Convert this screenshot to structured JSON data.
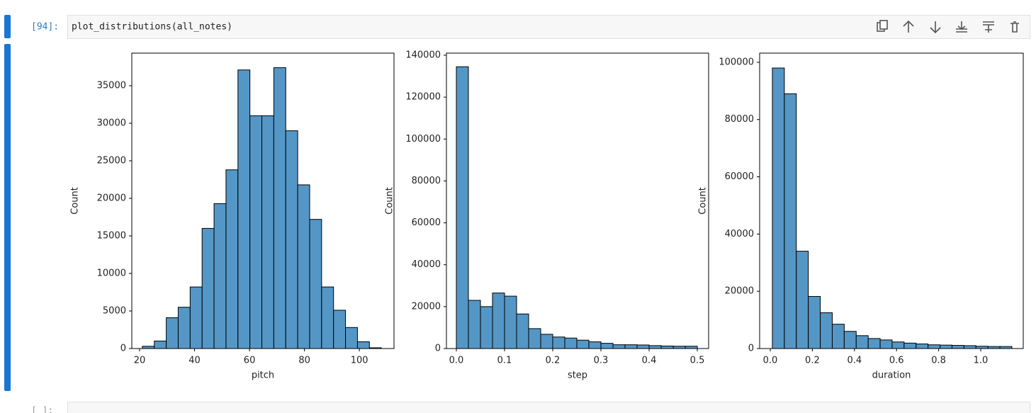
{
  "cell": {
    "prompt": "[94]:",
    "code": "plot_distributions(all_notes)"
  },
  "next_cell": {
    "prompt": "[ ]:"
  },
  "chart_data": [
    {
      "type": "histogram",
      "xlabel": "pitch",
      "ylabel": "Count",
      "color": "#5497c6",
      "edgecolor": "#000000",
      "bins": [
        21,
        25.35,
        29.7,
        34.05,
        38.4,
        42.75,
        47.1,
        51.45,
        55.8,
        60.15,
        64.5,
        68.85,
        73.2,
        77.55,
        81.9,
        86.25,
        90.6,
        94.95,
        99.3,
        103.65,
        108
      ],
      "values": [
        300,
        1000,
        4100,
        5500,
        8200,
        16000,
        19300,
        23800,
        37100,
        31000,
        31000,
        37400,
        29000,
        21800,
        17200,
        8200,
        5100,
        2800,
        900,
        100
      ],
      "xlim": [
        17.16,
        112.6
      ],
      "ylim": [
        0,
        39340
      ],
      "xticks": [
        20,
        40,
        60,
        80,
        100
      ],
      "yticks": [
        0,
        5000,
        10000,
        15000,
        20000,
        25000,
        30000,
        35000
      ]
    },
    {
      "type": "histogram",
      "xlabel": "step",
      "ylabel": "Count",
      "color": "#5497c6",
      "edgecolor": "#000000",
      "bins": [
        0,
        0.025,
        0.05,
        0.075,
        0.1,
        0.125,
        0.15,
        0.175,
        0.2,
        0.225,
        0.25,
        0.275,
        0.3,
        0.325,
        0.35,
        0.375,
        0.4,
        0.425,
        0.45,
        0.475,
        0.5
      ],
      "values": [
        134500,
        23000,
        20000,
        26500,
        25000,
        16500,
        9500,
        6800,
        5500,
        5000,
        4000,
        3200,
        2500,
        1800,
        1800,
        1700,
        1400,
        1200,
        1100,
        1100
      ],
      "xlim": [
        -0.0206,
        0.5235
      ],
      "ylim": [
        0,
        141000
      ],
      "xticks": [
        {
          "value": 0,
          "label": "0.0"
        },
        0.1,
        0.2,
        0.3,
        0.4,
        0.5
      ],
      "yticks": [
        0,
        20000,
        40000,
        60000,
        80000,
        100000,
        120000,
        140000
      ]
    },
    {
      "type": "histogram",
      "xlabel": "duration",
      "ylabel": "Count",
      "color": "#5497c6",
      "edgecolor": "#000000",
      "bins": [
        0.01,
        0.0669,
        0.1238,
        0.1807,
        0.2376,
        0.2945,
        0.3514,
        0.4083,
        0.4652,
        0.5221,
        0.579,
        0.6359,
        0.6928,
        0.7497,
        0.8066,
        0.8635,
        0.9204,
        0.9773,
        1.0342,
        1.0911,
        1.148
      ],
      "values": [
        98000,
        89000,
        34000,
        18200,
        12500,
        8500,
        6000,
        4500,
        3500,
        3000,
        2300,
        1900,
        1600,
        1300,
        1200,
        1100,
        1000,
        800,
        700,
        700
      ],
      "xlim": [
        -0.0505,
        1.202
      ],
      "ylim": [
        0,
        103200
      ],
      "xticks": [
        {
          "value": 0,
          "label": "0.0"
        },
        0.2,
        0.4,
        0.6,
        0.8,
        {
          "value": 1,
          "label": "1.0"
        }
      ],
      "yticks": [
        0,
        20000,
        40000,
        60000,
        80000,
        100000
      ]
    }
  ]
}
